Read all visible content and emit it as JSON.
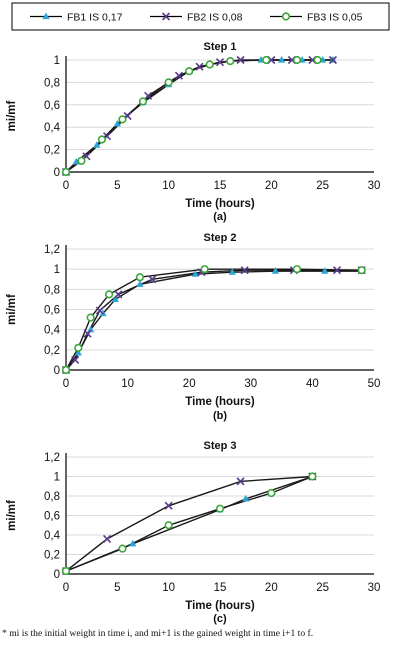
{
  "colors": {
    "FB1": "#29a6d6",
    "FB2": "#5b3b8e",
    "FB3": "#3aa63a",
    "axis": "#000000",
    "grid": "#d9d9d9"
  },
  "legend": {
    "placement": "top",
    "items": [
      {
        "label": "FB1 IS 0,17",
        "marker": "triangle",
        "color": "#29a6d6"
      },
      {
        "label": "FB2 IS 0,08",
        "marker": "x",
        "color": "#5b3b8e"
      },
      {
        "label": "FB3 IS 0,05",
        "marker": "circle",
        "color": "#3aa63a"
      }
    ]
  },
  "footnote": "* mi is the initial weight in time i, and mi+1 is the gained weight in time i+1 to f.",
  "chart_data": [
    {
      "type": "line",
      "title": "Step 1",
      "caption": "(a)",
      "xlabel": "Time (hours)",
      "ylabel": "mi/mf",
      "xlim": [
        0,
        30
      ],
      "ylim": [
        0,
        1
      ],
      "xticks": [
        "0",
        "5",
        "10",
        "15",
        "20",
        "25",
        "30"
      ],
      "yticks": [
        "0",
        "0,2",
        "0,4",
        "0,6",
        "0,8",
        "1"
      ],
      "grid": true,
      "series": [
        {
          "name": "FB1 IS 0,17",
          "x": [
            0,
            1,
            3,
            5,
            7.5,
            10,
            12,
            14,
            16,
            19,
            21,
            23,
            25,
            26
          ],
          "y": [
            0,
            0.09,
            0.24,
            0.43,
            0.62,
            0.78,
            0.9,
            0.96,
            0.99,
            1,
            1,
            1,
            1,
            1
          ]
        },
        {
          "name": "FB2 IS 0,08",
          "x": [
            0,
            2,
            4,
            6,
            8,
            11,
            13,
            15,
            17,
            20,
            22,
            24,
            26
          ],
          "y": [
            0,
            0.14,
            0.32,
            0.5,
            0.68,
            0.86,
            0.94,
            0.98,
            1,
            1,
            1,
            1,
            1
          ]
        },
        {
          "name": "FB3 IS 0,05",
          "x": [
            0,
            1.5,
            3.5,
            5.5,
            7.5,
            10,
            12,
            14,
            16,
            19.5,
            22.5,
            24.5
          ],
          "y": [
            0,
            0.1,
            0.29,
            0.47,
            0.63,
            0.8,
            0.9,
            0.96,
            0.99,
            1,
            1,
            1
          ]
        }
      ]
    },
    {
      "type": "line",
      "title": "Step 2",
      "caption": "(b)",
      "xlabel": "Time (hours)",
      "ylabel": "mi/mf",
      "xlim": [
        0,
        50
      ],
      "ylim": [
        0,
        1.2
      ],
      "xticks": [
        "0",
        "10",
        "20",
        "30",
        "40",
        "50"
      ],
      "yticks": [
        "0",
        "0,2",
        "0,4",
        "0,6",
        "0,8",
        "1",
        "1,2"
      ],
      "grid": true,
      "series": [
        {
          "name": "FB1 IS 0,17",
          "x": [
            0,
            2,
            4,
            6,
            8,
            12,
            21,
            27,
            34,
            42,
            48
          ],
          "y": [
            0,
            0.17,
            0.4,
            0.56,
            0.7,
            0.85,
            0.95,
            0.97,
            0.98,
            0.98,
            0.98
          ]
        },
        {
          "name": "FB2 IS 0,08",
          "x": [
            0,
            1.5,
            3.5,
            5.5,
            8.5,
            14,
            22,
            29,
            37,
            44,
            48
          ],
          "y": [
            0,
            0.1,
            0.36,
            0.59,
            0.75,
            0.9,
            0.97,
            0.99,
            0.99,
            0.99,
            0.99
          ]
        },
        {
          "name": "FB3 IS 0,05",
          "x": [
            0,
            2,
            4,
            7,
            12,
            22.5,
            37.5,
            48
          ],
          "y": [
            0,
            0.22,
            0.52,
            0.75,
            0.92,
            1,
            1,
            0.99
          ]
        }
      ]
    },
    {
      "type": "line",
      "title": "Step 3",
      "caption": "(c)",
      "xlabel": "Time (hours)",
      "ylabel": "mi/mf",
      "xlim": [
        0,
        30
      ],
      "ylim": [
        0,
        1.2
      ],
      "xticks": [
        "0",
        "5",
        "10",
        "15",
        "20",
        "25",
        "30"
      ],
      "yticks": [
        "0",
        "0,2",
        "0,4",
        "0,6",
        "0,8",
        "1",
        "1,2"
      ],
      "grid": true,
      "series": [
        {
          "name": "FB1 IS 0,17",
          "x": [
            0,
            6.5,
            15,
            17.5,
            24
          ],
          "y": [
            0.03,
            0.31,
            0.66,
            0.77,
            1
          ]
        },
        {
          "name": "FB2 IS 0,08",
          "x": [
            0,
            4,
            10,
            17,
            24
          ],
          "y": [
            0.03,
            0.36,
            0.7,
            0.95,
            1
          ]
        },
        {
          "name": "FB3 IS 0,05",
          "x": [
            0,
            5.5,
            10,
            15,
            20,
            24
          ],
          "y": [
            0.03,
            0.26,
            0.5,
            0.67,
            0.83,
            1
          ]
        }
      ]
    }
  ]
}
